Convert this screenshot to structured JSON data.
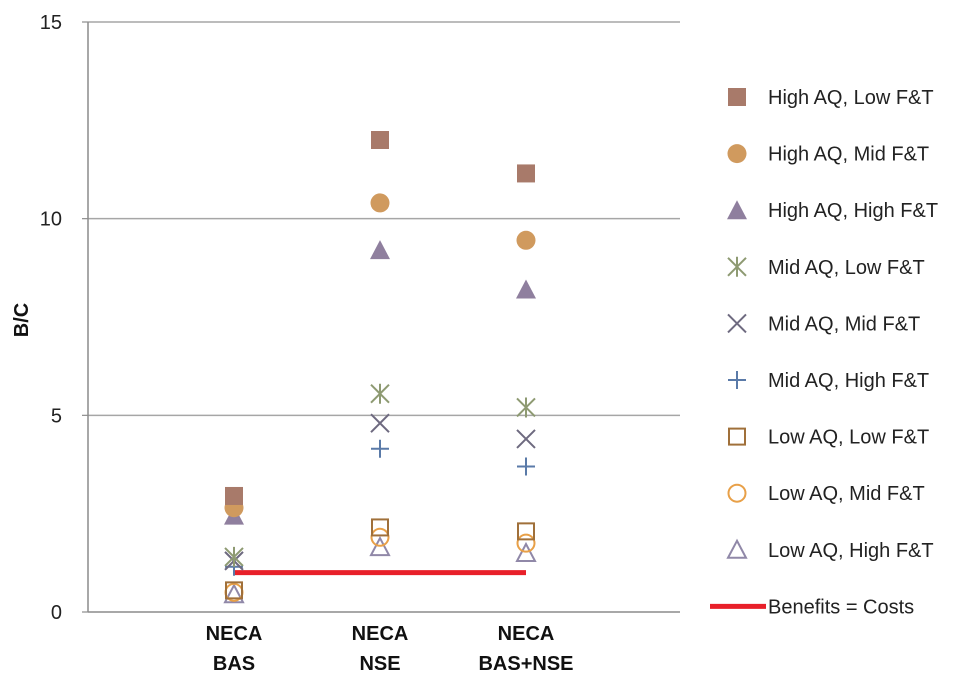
{
  "chart_data": {
    "type": "scatter",
    "ylabel": "B/C",
    "xlabel": "",
    "ylim": [
      0,
      15
    ],
    "yticks": [
      0,
      5,
      10,
      15
    ],
    "grid": true,
    "legend_position": "right",
    "categories": [
      [
        "NECA",
        "BAS"
      ],
      [
        "NECA",
        "NSE"
      ],
      [
        "NECA",
        "BAS+NSE"
      ]
    ],
    "series": [
      {
        "name": "High AQ, Low F&T",
        "marker": "filled-square",
        "color": "#A87A6A",
        "values": [
          2.95,
          12.0,
          11.15
        ]
      },
      {
        "name": "High AQ, Mid F&T",
        "marker": "filled-circle",
        "color": "#D09A5E",
        "values": [
          2.65,
          10.4,
          9.45
        ]
      },
      {
        "name": "High AQ, High F&T",
        "marker": "filled-triangle",
        "color": "#8F7F9E",
        "values": [
          2.45,
          9.2,
          8.2
        ]
      },
      {
        "name": "Mid AQ, Low F&T",
        "marker": "asterisk",
        "color": "#8E9A72",
        "values": [
          1.4,
          5.55,
          5.2
        ]
      },
      {
        "name": "Mid AQ, Mid F&T",
        "marker": "x",
        "color": "#6E6A80",
        "values": [
          1.3,
          4.8,
          4.4
        ]
      },
      {
        "name": "Mid AQ, High F&T",
        "marker": "plus",
        "color": "#5A7AA8",
        "values": [
          1.15,
          4.15,
          3.7
        ]
      },
      {
        "name": "Low AQ, Low F&T",
        "marker": "open-square",
        "color": "#A0703A",
        "values": [
          0.55,
          2.15,
          2.05
        ]
      },
      {
        "name": "Low AQ, Mid F&T",
        "marker": "open-circle",
        "color": "#E8A048",
        "values": [
          0.5,
          1.9,
          1.75
        ]
      },
      {
        "name": "Low AQ, High F&T",
        "marker": "open-triangle",
        "color": "#9088A8",
        "values": [
          0.45,
          1.65,
          1.5
        ]
      }
    ],
    "reference_line": {
      "name": "Benefits = Costs",
      "value": 1,
      "color": "#E8202A"
    }
  }
}
